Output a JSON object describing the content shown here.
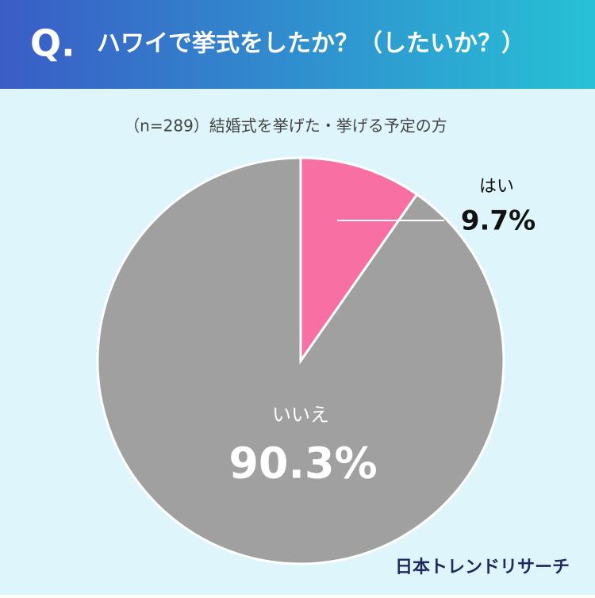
{
  "header": {
    "mark": "Q.",
    "title": "ハワイで挙式をしたか？（したいか？）"
  },
  "chart_data": {
    "type": "pie",
    "subtitle": "（n=289）結婚式を挙げた・挙げる予定の方",
    "categories": [
      "はい",
      "いいえ"
    ],
    "values": [
      9.7,
      90.3
    ],
    "value_labels": [
      "9.7%",
      "90.3%"
    ],
    "colors": [
      "#f76fa3",
      "#a0a0a0"
    ]
  },
  "footer": {
    "brand": "日本トレンドリサーチ"
  }
}
